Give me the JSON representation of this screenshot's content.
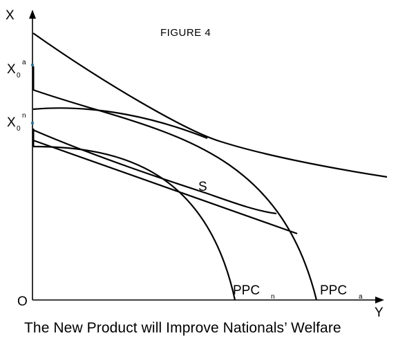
{
  "figure": {
    "title": "FIGURE 4",
    "caption": "The New Product will Improve Nationals’ Welfare",
    "axes": {
      "x_axis_label": "Y",
      "y_axis_label": "X",
      "origin_label": "O"
    },
    "vertical_axis_markers": [
      {
        "base": "X",
        "subscript": "0",
        "superscript": "a"
      },
      {
        "base": "X",
        "subscript": "0",
        "superscript": "n"
      }
    ],
    "curve_labels": {
      "s_curve": "S",
      "ppc_n": {
        "base": "PPC",
        "subscript": "n"
      },
      "ppc_a": {
        "base": "PPC",
        "subscript": "a"
      }
    },
    "colors": {
      "ink": "#000000",
      "marker_dot": "#2f6f8f",
      "background": "#ffffff"
    }
  }
}
